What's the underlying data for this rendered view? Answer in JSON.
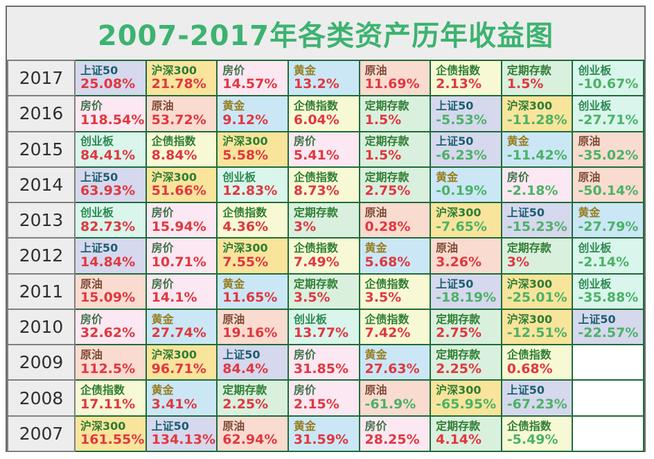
{
  "chart_data": {
    "type": "table",
    "title": "2007-2017年各类资产历年收益图",
    "description_layout": "rows are years, cells are asset classes ranked left-to-right by annual return",
    "colors": {
      "title": "#3cb370",
      "positive": "#e0383f",
      "negative": "#4cb266",
      "grid_border": "#1e6b38",
      "year_border": "#808080",
      "background": "#ededed"
    },
    "assets": {
      "sse50": {
        "label": "上证50",
        "bg": "#d6d8ee",
        "fg": "#1c5f6e"
      },
      "csi300": {
        "label": "沪深300",
        "bg": "#f9e49c",
        "fg": "#2f7d33"
      },
      "house": {
        "label": "房价",
        "bg": "#fbe8f2",
        "fg": "#3f7249"
      },
      "gold": {
        "label": "黄金",
        "bg": "#cbe7f6",
        "fg": "#967d1e"
      },
      "oil": {
        "label": "原油",
        "bg": "#fadbd0",
        "fg": "#7d4a35"
      },
      "bond": {
        "label": "企债指数",
        "bg": "#f7f9d4",
        "fg": "#2f7d33"
      },
      "deposit": {
        "label": "定期存款",
        "bg": "#daf0de",
        "fg": "#2f7d33"
      },
      "chinext": {
        "label": "创业板",
        "bg": "#d9f5ec",
        "fg": "#2f8a52"
      }
    },
    "rows": [
      {
        "year": "2017",
        "cells": [
          {
            "asset": "sse50",
            "value": "25.08%"
          },
          {
            "asset": "csi300",
            "value": "21.78%"
          },
          {
            "asset": "house",
            "value": "14.57%"
          },
          {
            "asset": "gold",
            "value": "13.2%"
          },
          {
            "asset": "oil",
            "value": "11.69%"
          },
          {
            "asset": "bond",
            "value": "2.13%"
          },
          {
            "asset": "deposit",
            "value": "1.5%"
          },
          {
            "asset": "chinext",
            "value": "-10.67%"
          }
        ]
      },
      {
        "year": "2016",
        "cells": [
          {
            "asset": "house",
            "value": "118.54%"
          },
          {
            "asset": "oil",
            "value": "53.72%"
          },
          {
            "asset": "gold",
            "value": "9.12%"
          },
          {
            "asset": "bond",
            "value": "6.04%"
          },
          {
            "asset": "deposit",
            "value": "1.5%"
          },
          {
            "asset": "sse50",
            "value": "-5.53%"
          },
          {
            "asset": "csi300",
            "value": "-11.28%"
          },
          {
            "asset": "chinext",
            "value": "-27.71%"
          }
        ]
      },
      {
        "year": "2015",
        "cells": [
          {
            "asset": "chinext",
            "value": "84.41%"
          },
          {
            "asset": "bond",
            "value": "8.84%"
          },
          {
            "asset": "csi300",
            "value": "5.58%"
          },
          {
            "asset": "house",
            "value": "5.41%"
          },
          {
            "asset": "deposit",
            "value": "1.5%"
          },
          {
            "asset": "sse50",
            "value": "-6.23%"
          },
          {
            "asset": "gold",
            "value": "-11.42%"
          },
          {
            "asset": "oil",
            "value": "-35.02%"
          }
        ]
      },
      {
        "year": "2014",
        "cells": [
          {
            "asset": "sse50",
            "value": "63.93%"
          },
          {
            "asset": "csi300",
            "value": "51.66%"
          },
          {
            "asset": "chinext",
            "value": "12.83%"
          },
          {
            "asset": "bond",
            "value": "8.73%"
          },
          {
            "asset": "deposit",
            "value": "2.75%"
          },
          {
            "asset": "gold",
            "value": "-0.19%"
          },
          {
            "asset": "house",
            "value": "-2.18%"
          },
          {
            "asset": "oil",
            "value": "-50.14%"
          }
        ]
      },
      {
        "year": "2013",
        "cells": [
          {
            "asset": "chinext",
            "value": "82.73%"
          },
          {
            "asset": "house",
            "value": "15.94%"
          },
          {
            "asset": "bond",
            "value": "4.36%"
          },
          {
            "asset": "deposit",
            "value": "3%"
          },
          {
            "asset": "oil",
            "value": "0.28%"
          },
          {
            "asset": "csi300",
            "value": "-7.65%"
          },
          {
            "asset": "sse50",
            "value": "-15.23%"
          },
          {
            "asset": "gold",
            "value": "-27.79%"
          }
        ]
      },
      {
        "year": "2012",
        "cells": [
          {
            "asset": "sse50",
            "value": "14.84%"
          },
          {
            "asset": "house",
            "value": "10.71%"
          },
          {
            "asset": "csi300",
            "value": "7.55%"
          },
          {
            "asset": "bond",
            "value": "7.49%"
          },
          {
            "asset": "gold",
            "value": "5.68%"
          },
          {
            "asset": "oil",
            "value": "3.26%"
          },
          {
            "asset": "deposit",
            "value": "3%"
          },
          {
            "asset": "chinext",
            "value": "-2.14%"
          }
        ]
      },
      {
        "year": "2011",
        "cells": [
          {
            "asset": "oil",
            "value": "15.09%"
          },
          {
            "asset": "house",
            "value": "14.1%"
          },
          {
            "asset": "gold",
            "value": "11.65%"
          },
          {
            "asset": "deposit",
            "value": "3.5%"
          },
          {
            "asset": "bond",
            "value": "3.5%"
          },
          {
            "asset": "sse50",
            "value": "-18.19%"
          },
          {
            "asset": "csi300",
            "value": "-25.01%"
          },
          {
            "asset": "chinext",
            "value": "-35.88%"
          }
        ]
      },
      {
        "year": "2010",
        "cells": [
          {
            "asset": "house",
            "value": "32.62%"
          },
          {
            "asset": "gold",
            "value": "27.74%"
          },
          {
            "asset": "oil",
            "value": "19.16%"
          },
          {
            "asset": "chinext",
            "value": "13.77%"
          },
          {
            "asset": "bond",
            "value": "7.42%"
          },
          {
            "asset": "deposit",
            "value": "2.75%"
          },
          {
            "asset": "csi300",
            "value": "-12.51%"
          },
          {
            "asset": "sse50",
            "value": "-22.57%"
          }
        ]
      },
      {
        "year": "2009",
        "cells": [
          {
            "asset": "oil",
            "value": "112.5%"
          },
          {
            "asset": "csi300",
            "value": "96.71%"
          },
          {
            "asset": "sse50",
            "value": "84.4%"
          },
          {
            "asset": "house",
            "value": "31.85%"
          },
          {
            "asset": "gold",
            "value": "27.63%"
          },
          {
            "asset": "deposit",
            "value": "2.25%"
          },
          {
            "asset": "bond",
            "value": "0.68%"
          }
        ]
      },
      {
        "year": "2008",
        "cells": [
          {
            "asset": "bond",
            "value": "17.11%"
          },
          {
            "asset": "gold",
            "value": "3.41%"
          },
          {
            "asset": "deposit",
            "value": "2.25%"
          },
          {
            "asset": "house",
            "value": "2.15%"
          },
          {
            "asset": "oil",
            "value": "-61.9%"
          },
          {
            "asset": "csi300",
            "value": "-65.95%"
          },
          {
            "asset": "sse50",
            "value": "-67.23%"
          }
        ]
      },
      {
        "year": "2007",
        "cells": [
          {
            "asset": "csi300",
            "value": "161.55%"
          },
          {
            "asset": "sse50",
            "value": "134.13%"
          },
          {
            "asset": "oil",
            "value": "62.94%"
          },
          {
            "asset": "gold",
            "value": "31.59%"
          },
          {
            "asset": "house",
            "value": "28.25%"
          },
          {
            "asset": "deposit",
            "value": "4.14%"
          },
          {
            "asset": "bond",
            "value": "-5.49%"
          }
        ]
      }
    ]
  }
}
